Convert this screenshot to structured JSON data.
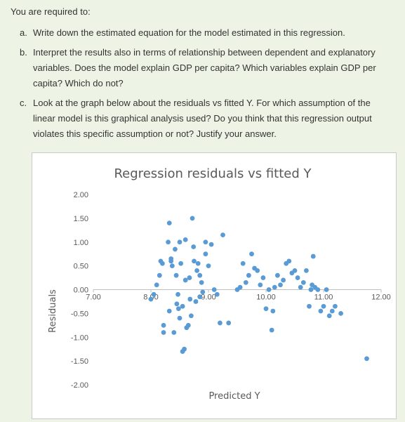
{
  "intro": "You are required to:",
  "questions": [
    {
      "marker": "a.",
      "text": "Write down the estimated equation for the model estimated in this regression."
    },
    {
      "marker": "b.",
      "text": "Interpret the results also in terms of relationship between dependent and explanatory variables. Does the model explain GDP per capita? Which variables explain GDP per capita? Which do not?"
    },
    {
      "marker": "c.",
      "text": "Look at the graph below about the residuals vs fitted Y. For which assumption of the linear model is this graphical analysis used? Do you think that this regression output violates this specific assumption or not? Justify your answer."
    }
  ],
  "chart_data": {
    "type": "scatter",
    "title": "Regression residuals vs fitted Y",
    "xlabel": "Predicted Y",
    "ylabel": "Residuals",
    "xlim": [
      7,
      12
    ],
    "ylim": [
      -2,
      2
    ],
    "x_ticks": [
      "7.00",
      "8.00",
      "9.00",
      "10.00",
      "11.00",
      "12.00"
    ],
    "y_ticks": [
      "2.00",
      "1.50",
      "1.00",
      "0.50",
      "0.00",
      "-0.50",
      "-1.00",
      "-1.50",
      "-2.00"
    ],
    "marker_color": "#5b9bd5",
    "grid": false,
    "points": [
      [
        8.0,
        -0.2
      ],
      [
        8.05,
        -0.1
      ],
      [
        8.1,
        0.1
      ],
      [
        8.15,
        0.3
      ],
      [
        8.17,
        0.6
      ],
      [
        8.2,
        0.55
      ],
      [
        8.22,
        -0.75
      ],
      [
        8.22,
        -0.9
      ],
      [
        8.3,
        1.0
      ],
      [
        8.32,
        1.4
      ],
      [
        8.32,
        -0.45
      ],
      [
        8.35,
        0.6
      ],
      [
        8.35,
        0.65
      ],
      [
        8.37,
        0.5
      ],
      [
        8.4,
        -0.9
      ],
      [
        8.42,
        0.85
      ],
      [
        8.44,
        0.3
      ],
      [
        8.45,
        -0.3
      ],
      [
        8.47,
        -0.1
      ],
      [
        8.48,
        -0.4
      ],
      [
        8.5,
        -0.6
      ],
      [
        8.5,
        1.0
      ],
      [
        8.52,
        0.55
      ],
      [
        8.55,
        -0.35
      ],
      [
        8.55,
        -1.3
      ],
      [
        8.58,
        -1.25
      ],
      [
        8.6,
        1.05
      ],
      [
        8.6,
        0.2
      ],
      [
        8.62,
        -0.8
      ],
      [
        8.65,
        -0.75
      ],
      [
        8.67,
        0.25
      ],
      [
        8.68,
        -0.2
      ],
      [
        8.7,
        -0.55
      ],
      [
        8.72,
        1.5
      ],
      [
        8.74,
        0.9
      ],
      [
        8.75,
        0.6
      ],
      [
        8.78,
        -0.25
      ],
      [
        8.8,
        0.4
      ],
      [
        8.82,
        0.55
      ],
      [
        8.85,
        -0.15
      ],
      [
        8.85,
        0.3
      ],
      [
        8.88,
        0.15
      ],
      [
        8.9,
        -0.05
      ],
      [
        8.95,
        0.75
      ],
      [
        8.95,
        1.0
      ],
      [
        9.0,
        0.5
      ],
      [
        9.05,
        0.95
      ],
      [
        9.1,
        0.0
      ],
      [
        9.15,
        -0.1
      ],
      [
        9.2,
        -0.7
      ],
      [
        9.25,
        1.15
      ],
      [
        9.35,
        -0.7
      ],
      [
        9.5,
        0.0
      ],
      [
        9.55,
        0.05
      ],
      [
        9.6,
        0.55
      ],
      [
        9.65,
        0.15
      ],
      [
        9.7,
        0.3
      ],
      [
        9.75,
        0.75
      ],
      [
        9.8,
        0.45
      ],
      [
        9.85,
        0.4
      ],
      [
        9.9,
        0.1
      ],
      [
        9.95,
        0.25
      ],
      [
        10.0,
        -0.4
      ],
      [
        10.05,
        0.0
      ],
      [
        10.1,
        -0.85
      ],
      [
        10.12,
        -0.45
      ],
      [
        10.15,
        0.05
      ],
      [
        10.2,
        0.3
      ],
      [
        10.25,
        0.1
      ],
      [
        10.3,
        0.2
      ],
      [
        10.35,
        0.55
      ],
      [
        10.4,
        0.6
      ],
      [
        10.45,
        0.35
      ],
      [
        10.5,
        0.4
      ],
      [
        10.55,
        0.25
      ],
      [
        10.6,
        0.05
      ],
      [
        10.65,
        0.15
      ],
      [
        10.7,
        0.4
      ],
      [
        10.75,
        -0.35
      ],
      [
        10.78,
        0.0
      ],
      [
        10.8,
        0.1
      ],
      [
        10.82,
        0.7
      ],
      [
        10.85,
        0.05
      ],
      [
        10.9,
        0.0
      ],
      [
        10.95,
        -0.45
      ],
      [
        11.0,
        -0.35
      ],
      [
        11.05,
        0.0
      ],
      [
        11.1,
        -0.55
      ],
      [
        11.15,
        -0.45
      ],
      [
        11.2,
        -0.35
      ],
      [
        11.3,
        -0.5
      ],
      [
        11.75,
        -1.45
      ]
    ]
  }
}
